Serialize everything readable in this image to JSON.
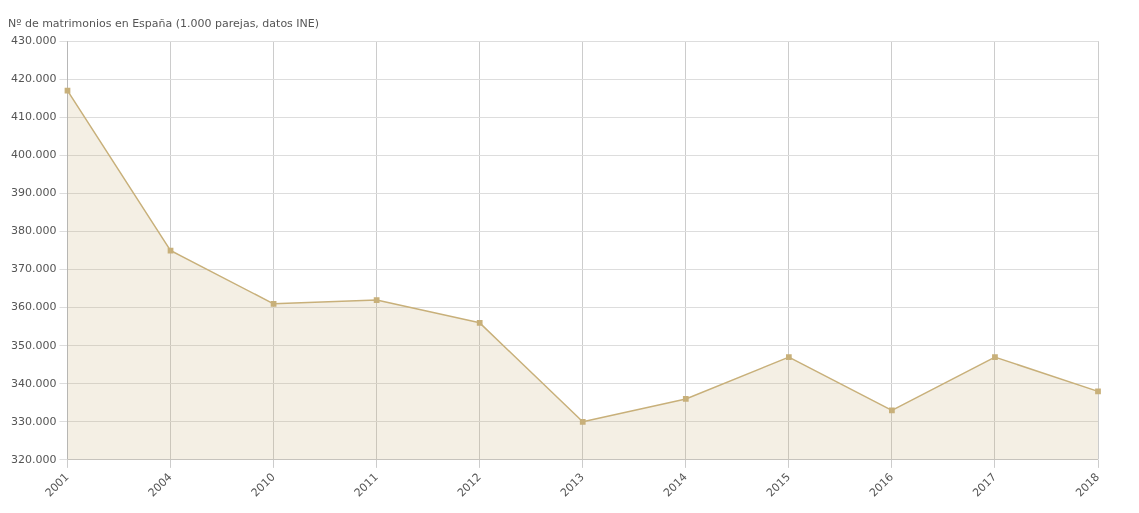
{
  "chart_data": {
    "type": "area",
    "title": "Nº de matrimonios en España (1.000 parejas, datos INE)",
    "categories": [
      "2001",
      "2004",
      "2010",
      "2011",
      "2012",
      "2013",
      "2014",
      "2015",
      "2016",
      "2017",
      "2018"
    ],
    "series": [
      {
        "color": "#c8b07a",
        "values": [
          417000,
          375000,
          361000,
          362000,
          356000,
          330000,
          336000,
          347000,
          333000,
          347000,
          338000
        ]
      }
    ],
    "ylim": [
      320000,
      430000
    ],
    "yticks": [
      {
        "value": 320000,
        "label": "320.000"
      },
      {
        "value": 330000,
        "label": "330.000"
      },
      {
        "value": 340000,
        "label": "340.000"
      },
      {
        "value": 350000,
        "label": "350.000"
      },
      {
        "value": 360000,
        "label": "360.000"
      },
      {
        "value": 370000,
        "label": "370.000"
      },
      {
        "value": 380000,
        "label": "380.000"
      },
      {
        "value": 390000,
        "label": "390.000"
      },
      {
        "value": 400000,
        "label": "400.000"
      },
      {
        "value": 410000,
        "label": "410.000"
      },
      {
        "value": 420000,
        "label": "420.000"
      },
      {
        "value": 430000,
        "label": "430.000"
      }
    ],
    "grid": true,
    "marker": "square",
    "legend": false
  }
}
